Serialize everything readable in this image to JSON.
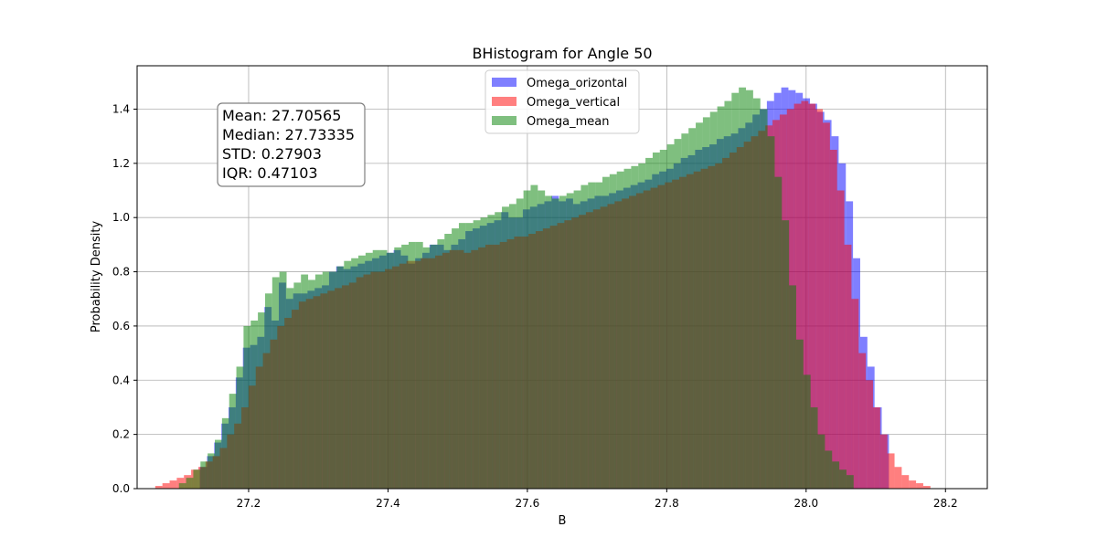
{
  "chart_data": {
    "type": "histogram",
    "title": "BHistogram for Angle 50",
    "xlabel": "B",
    "ylabel": "Probability Density",
    "xlim": [
      27.04,
      28.26
    ],
    "ylim": [
      0.0,
      1.56
    ],
    "x_ticks": [
      27.2,
      27.4,
      27.6,
      27.8,
      28.0,
      28.2
    ],
    "x_tick_labels": [
      "27.2",
      "27.4",
      "27.6",
      "27.8",
      "28.0",
      "28.2"
    ],
    "y_ticks": [
      0.0,
      0.2,
      0.4,
      0.6,
      0.8,
      1.0,
      1.2,
      1.4
    ],
    "y_tick_labels": [
      "0.0",
      "0.2",
      "0.4",
      "0.6",
      "0.8",
      "1.0",
      "1.2",
      "1.4"
    ],
    "grid": true,
    "legend_position": "upper-center",
    "stats_box": {
      "mean": "Mean: 27.70565",
      "median": "Median: 27.73335",
      "std": "STD: 0.27903",
      "iqr": "IQR: 0.47103"
    },
    "series": [
      {
        "name": "Omega_orizontal",
        "color": "#0000ff",
        "bin_start": 27.13,
        "bin_width": 0.0103,
        "density": [
          0.08,
          0.12,
          0.17,
          0.24,
          0.3,
          0.41,
          0.52,
          0.53,
          0.56,
          0.67,
          0.62,
          0.76,
          0.7,
          0.72,
          0.72,
          0.73,
          0.74,
          0.75,
          0.8,
          0.82,
          0.81,
          0.82,
          0.83,
          0.84,
          0.85,
          0.86,
          0.87,
          0.88,
          0.86,
          0.83,
          0.85,
          0.87,
          0.9,
          0.9,
          0.88,
          0.9,
          0.92,
          0.95,
          0.96,
          0.97,
          0.98,
          0.99,
          1.02,
          1.0,
          1.0,
          1.03,
          1.04,
          1.05,
          1.06,
          1.08,
          1.06,
          1.07,
          1.05,
          1.06,
          1.07,
          1.08,
          1.08,
          1.09,
          1.1,
          1.11,
          1.12,
          1.13,
          1.14,
          1.16,
          1.17,
          1.18,
          1.2,
          1.22,
          1.23,
          1.25,
          1.26,
          1.27,
          1.29,
          1.3,
          1.31,
          1.33,
          1.35,
          1.38,
          1.4,
          1.43,
          1.46,
          1.48,
          1.47,
          1.46,
          1.44,
          1.42,
          1.39,
          1.36,
          1.3,
          1.2,
          1.06,
          0.85,
          0.56,
          0.45,
          0.3,
          0.2
        ]
      },
      {
        "name": "Omega_vertical",
        "color": "#ff0000",
        "bin_start": 27.066,
        "bin_width": 0.0103,
        "density": [
          0.01,
          0.02,
          0.03,
          0.04,
          0.05,
          0.07,
          0.08,
          0.1,
          0.12,
          0.15,
          0.2,
          0.24,
          0.3,
          0.38,
          0.45,
          0.5,
          0.55,
          0.6,
          0.63,
          0.66,
          0.69,
          0.7,
          0.71,
          0.72,
          0.73,
          0.74,
          0.75,
          0.76,
          0.78,
          0.79,
          0.8,
          0.8,
          0.81,
          0.82,
          0.83,
          0.84,
          0.84,
          0.85,
          0.85,
          0.86,
          0.87,
          0.88,
          0.88,
          0.87,
          0.88,
          0.89,
          0.9,
          0.9,
          0.91,
          0.92,
          0.93,
          0.93,
          0.94,
          0.95,
          0.96,
          0.97,
          0.98,
          0.99,
          1.0,
          1.01,
          1.02,
          1.03,
          1.04,
          1.05,
          1.06,
          1.07,
          1.08,
          1.09,
          1.1,
          1.11,
          1.12,
          1.13,
          1.14,
          1.15,
          1.16,
          1.17,
          1.18,
          1.19,
          1.2,
          1.22,
          1.24,
          1.26,
          1.28,
          1.3,
          1.32,
          1.34,
          1.36,
          1.38,
          1.4,
          1.42,
          1.43,
          1.42,
          1.4,
          1.35,
          1.25,
          1.1,
          0.9,
          0.7,
          0.5,
          0.4,
          0.3,
          0.2,
          0.13,
          0.08,
          0.05,
          0.03,
          0.02,
          0.01
        ]
      },
      {
        "name": "Omega_mean",
        "color": "#008000",
        "bin_start": 27.1,
        "bin_width": 0.0103,
        "density": [
          0.02,
          0.04,
          0.07,
          0.1,
          0.13,
          0.18,
          0.26,
          0.35,
          0.45,
          0.6,
          0.62,
          0.65,
          0.72,
          0.78,
          0.8,
          0.74,
          0.76,
          0.79,
          0.77,
          0.79,
          0.8,
          0.8,
          0.82,
          0.84,
          0.85,
          0.86,
          0.87,
          0.88,
          0.88,
          0.87,
          0.89,
          0.9,
          0.91,
          0.91,
          0.89,
          0.9,
          0.92,
          0.94,
          0.96,
          0.98,
          0.98,
          0.99,
          1.0,
          1.01,
          1.02,
          1.04,
          1.05,
          1.07,
          1.1,
          1.12,
          1.1,
          1.08,
          1.07,
          1.08,
          1.09,
          1.1,
          1.12,
          1.13,
          1.13,
          1.15,
          1.16,
          1.17,
          1.18,
          1.19,
          1.2,
          1.22,
          1.24,
          1.25,
          1.27,
          1.29,
          1.31,
          1.33,
          1.35,
          1.37,
          1.39,
          1.41,
          1.43,
          1.46,
          1.48,
          1.47,
          1.44,
          1.4,
          1.3,
          1.15,
          0.99,
          0.75,
          0.55,
          0.42,
          0.3,
          0.2,
          0.14,
          0.1,
          0.07,
          0.05
        ]
      }
    ]
  }
}
